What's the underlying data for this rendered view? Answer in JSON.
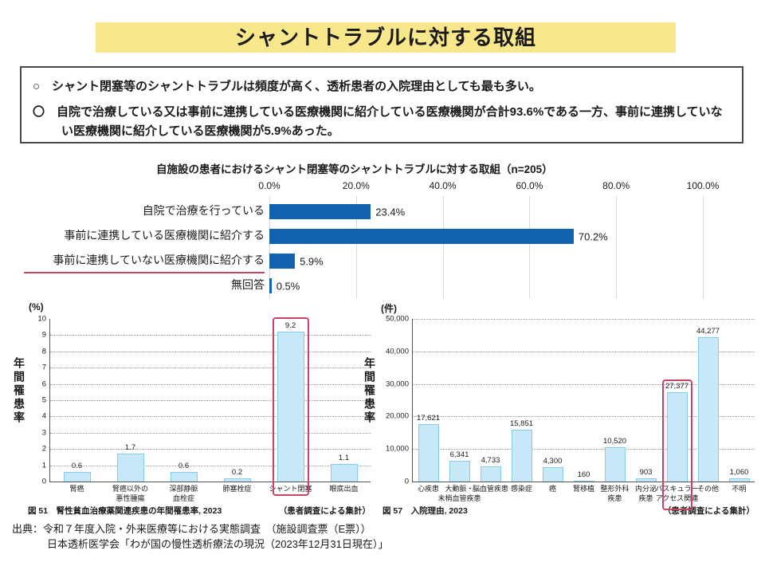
{
  "page": {
    "title": "シャントトラブルに対する取組"
  },
  "summary_box": {
    "bullets": [
      "○　シャント閉塞等のシャントトラブルは頻度が高く、透析患者の入院理由としても最も多い。",
      "〇　自院で治療している又は事前に連携している医療機関に紹介している医療機関が合計93.6%である一方、事前に連携していない医療機関に紹介している医療機関が5.9%あった。"
    ]
  },
  "colors": {
    "title_bg": "#F9E78C",
    "box_border": "#4A4A4A",
    "bar_blue": "#1263AF",
    "light_bar_fill": "#C7E8F8",
    "light_bar_border": "#84CBEC",
    "highlight_red": "#CB4365",
    "grid_gray": "#C9C9C9"
  },
  "chart_data": [
    {
      "id": "shunt_trouble_actions",
      "type": "bar",
      "orientation": "horizontal",
      "title": "自施設の患者におけるシャント閉塞等のシャントトラブルに対する取組（n=205）",
      "categories": [
        "自院で治療を行っている",
        "事前に連携している医療機関に紹介する",
        "事前に連携していない医療機関に紹介する",
        "無回答"
      ],
      "values": [
        23.4,
        70.2,
        5.9,
        0.5
      ],
      "value_labels": [
        "23.4%",
        "70.2%",
        "5.9%",
        "0.5%"
      ],
      "x_ticks": [
        "0.0%",
        "20.0%",
        "40.0%",
        "60.0%",
        "80.0%",
        "100.0%"
      ],
      "xlim": [
        0,
        100
      ],
      "underlined_category_index": 2,
      "grid": true,
      "legend": "none"
    },
    {
      "id": "fig51_annual_incidence",
      "type": "bar",
      "orientation": "vertical",
      "unit_label": "(%)",
      "ylabel": "年間罹患率",
      "categories": [
        "腎癌",
        "腎癌以外の|悪性腫瘍",
        "深部静脈|血栓症",
        "肺塞栓症",
        "シャント閉塞",
        "眼底出血"
      ],
      "values": [
        0.6,
        1.7,
        0.6,
        0.2,
        9.2,
        1.1
      ],
      "value_labels": [
        "0.6",
        "1.7",
        "0.6",
        "0.2",
        "9.2",
        "1.1"
      ],
      "ylim": [
        0,
        10
      ],
      "y_ticks": [
        0,
        1,
        2,
        3,
        4,
        5,
        6,
        7,
        8,
        9,
        10
      ],
      "grid": true,
      "grid_top": false,
      "highlight_index": 4,
      "caption": "図 51　腎性貧血治療薬関連疾患の年間罹患率, 2023",
      "caption_note": "（患者調査による集計）"
    },
    {
      "id": "fig57_hospitalization_reasons",
      "type": "bar",
      "orientation": "vertical",
      "unit_label": "(件)",
      "ylabel": "年間罹患率",
      "categories": [
        "心疾患",
        "大動脈・|末梢血管疾患",
        "脳血管疾患",
        "感染症",
        "癌",
        "腎移植",
        "整形外科|疾患",
        "内分泌|疾患",
        "バスキュラー|アクセス関連",
        "その他",
        "不明"
      ],
      "values": [
        17621,
        6341,
        4733,
        15851,
        4300,
        160,
        10520,
        903,
        27377,
        44277,
        1060
      ],
      "value_labels": [
        "17,621",
        "6,341",
        "4,733",
        "15,851",
        "4,300",
        "160",
        "10,520",
        "903",
        "27,377",
        "44,277",
        "1,060"
      ],
      "ylim": [
        0,
        50000
      ],
      "y_ticks": [
        "0",
        "10,000",
        "20,000",
        "30,000",
        "40,000",
        "50,000"
      ],
      "grid": true,
      "grid_top": true,
      "highlight_index": 8,
      "caption": "図 57　入院理由, 2023",
      "caption_note": "（患者調査による集計）"
    }
  ],
  "source": {
    "line1": "出典：令和７年度入院・外来医療等における実態調査　（施設調査票（E票））",
    "line2": "日本透析医学会「わが国の慢性透析療法の現況（2023年12月31日現在）」"
  }
}
